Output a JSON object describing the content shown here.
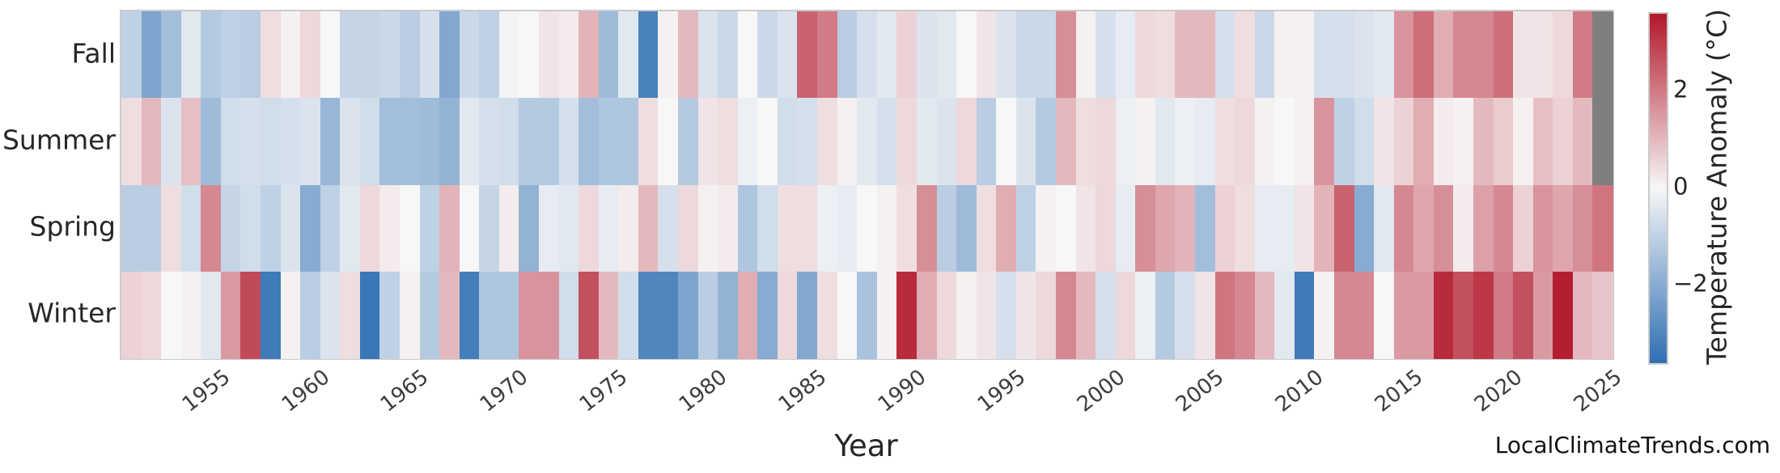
{
  "figure": {
    "xlabel": "Year",
    "watermark": "LocalClimateTrends.com"
  },
  "colorbar": {
    "label": "Temperature Anomaly (°C)",
    "ticks": [
      {
        "label": "2",
        "value": 2
      },
      {
        "label": "0",
        "value": 0
      },
      {
        "label": "−2",
        "value": -2
      }
    ],
    "vmin": -3.6,
    "vmax": 3.6,
    "color_positive": "#b2182b",
    "color_zero": "#f7f7f7",
    "color_negative": "#2e6fb3",
    "nan_color": "#7f7f7f"
  },
  "chart_data": {
    "type": "heatmap",
    "title": "",
    "xlabel": "Year",
    "ylabel": "",
    "rows": [
      "Fall",
      "Summer",
      "Spring",
      "Winter"
    ],
    "year_start": 1950,
    "year_end": 2024,
    "x_tick_years": [
      1955,
      1960,
      1965,
      1970,
      1975,
      1980,
      1985,
      1990,
      1995,
      2000,
      2005,
      2010,
      2015,
      2020,
      2025
    ],
    "value_units": "°C anomaly",
    "missing_cells": [
      {
        "row": "Fall",
        "year": 2024
      },
      {
        "row": "Summer",
        "year": 2024
      }
    ],
    "series": [
      {
        "name": "Fall",
        "values": [
          -1.0,
          -2.2,
          -1.5,
          -0.4,
          -1.2,
          -1.0,
          -1.1,
          0.4,
          0.1,
          0.5,
          0.0,
          -0.9,
          -0.9,
          -0.8,
          -1.1,
          -0.6,
          -2.1,
          -0.8,
          -1.0,
          -0.1,
          0.0,
          0.3,
          0.2,
          1.1,
          -1.6,
          -0.4,
          -3.1,
          0.1,
          1.0,
          -0.5,
          -0.8,
          0.0,
          -0.8,
          -0.5,
          2.4,
          2.0,
          -1.1,
          -0.6,
          -0.4,
          0.6,
          -0.5,
          -0.4,
          0.0,
          0.3,
          -0.5,
          -0.8,
          -0.8,
          1.7,
          0.1,
          -0.6,
          -0.3,
          0.5,
          0.4,
          1.0,
          1.0,
          -0.6,
          0.4,
          -0.8,
          0.1,
          0.1,
          -0.6,
          -0.6,
          -0.5,
          -0.4,
          1.6,
          2.2,
          1.2,
          1.8,
          1.8,
          2.2,
          0.3,
          0.3,
          0.5,
          2.0,
          null
        ]
      },
      {
        "name": "Summer",
        "values": [
          0.4,
          1.0,
          -0.5,
          0.9,
          -1.6,
          -0.7,
          -0.6,
          -0.7,
          -0.6,
          -0.5,
          -1.7,
          -0.5,
          -0.7,
          -1.5,
          -1.5,
          -1.6,
          -1.8,
          -0.4,
          -0.6,
          -0.7,
          -1.2,
          -1.2,
          -0.6,
          -1.5,
          -1.3,
          -1.3,
          0.4,
          0.0,
          -1.2,
          0.3,
          0.4,
          -0.2,
          0.0,
          -0.7,
          -0.6,
          0.4,
          0.1,
          -0.4,
          -0.6,
          0.5,
          -0.4,
          -0.5,
          0.5,
          -1.1,
          0.0,
          -0.5,
          -1.2,
          1.0,
          0.4,
          0.5,
          -0.2,
          0.1,
          -0.4,
          -0.2,
          -0.3,
          0.4,
          0.5,
          0.1,
          0.0,
          0.1,
          1.6,
          -1.0,
          -0.7,
          0.3,
          0.6,
          1.2,
          0.2,
          0.1,
          1.0,
          0.7,
          0.1,
          0.9,
          0.6,
          1.0,
          null
        ]
      },
      {
        "name": "Spring",
        "values": [
          -1.1,
          -1.1,
          0.4,
          -0.7,
          1.8,
          -0.9,
          -0.7,
          -1.0,
          -0.5,
          -2.0,
          -1.0,
          -0.4,
          0.5,
          0.2,
          0.0,
          -1.0,
          1.1,
          0.0,
          -0.9,
          0.2,
          -1.8,
          -0.3,
          -0.4,
          0.5,
          -0.3,
          0.2,
          1.0,
          -0.6,
          0.5,
          0.1,
          0.2,
          -1.3,
          -0.7,
          0.4,
          0.4,
          -0.2,
          -0.3,
          0.0,
          0.1,
          0.4,
          1.7,
          -1.1,
          -1.6,
          0.4,
          1.2,
          -1.0,
          0.1,
          0.0,
          0.3,
          0.5,
          -0.3,
          1.7,
          1.3,
          1.1,
          -1.5,
          0.6,
          0.4,
          -0.3,
          -0.3,
          0.3,
          1.1,
          2.4,
          -2.0,
          -0.4,
          1.8,
          1.3,
          1.7,
          0.2,
          1.4,
          1.8,
          0.6,
          1.6,
          1.3,
          1.7,
          2.1
        ]
      },
      {
        "name": "Winter",
        "values": [
          0.6,
          0.5,
          0.0,
          0.1,
          -0.4,
          1.5,
          2.8,
          -3.3,
          0.1,
          -1.1,
          -0.5,
          0.4,
          -3.4,
          -1.0,
          0.1,
          -1.2,
          1.0,
          -3.2,
          -1.3,
          -1.3,
          1.6,
          1.6,
          -0.7,
          2.7,
          1.0,
          -0.7,
          -3.0,
          -3.0,
          -2.2,
          -1.1,
          -1.8,
          1.2,
          -2.0,
          0.5,
          -2.1,
          0.4,
          0.0,
          -1.4,
          0.1,
          3.3,
          1.2,
          0.5,
          0.1,
          0.3,
          -0.6,
          0.3,
          0.5,
          1.8,
          1.0,
          -0.6,
          0.5,
          -0.2,
          -1.2,
          -0.6,
          0.3,
          2.1,
          1.8,
          1.0,
          -0.4,
          -3.3,
          0.1,
          1.8,
          1.8,
          0.0,
          1.5,
          1.5,
          3.3,
          2.7,
          3.1,
          2.0,
          2.7,
          1.5,
          3.5,
          1.0,
          0.8
        ]
      }
    ],
    "layout": {
      "grid": false,
      "legend_position": "colorbar-right",
      "x_axis_range": [
        1950,
        2025
      ],
      "x_tick_rotation_deg": 38
    }
  }
}
